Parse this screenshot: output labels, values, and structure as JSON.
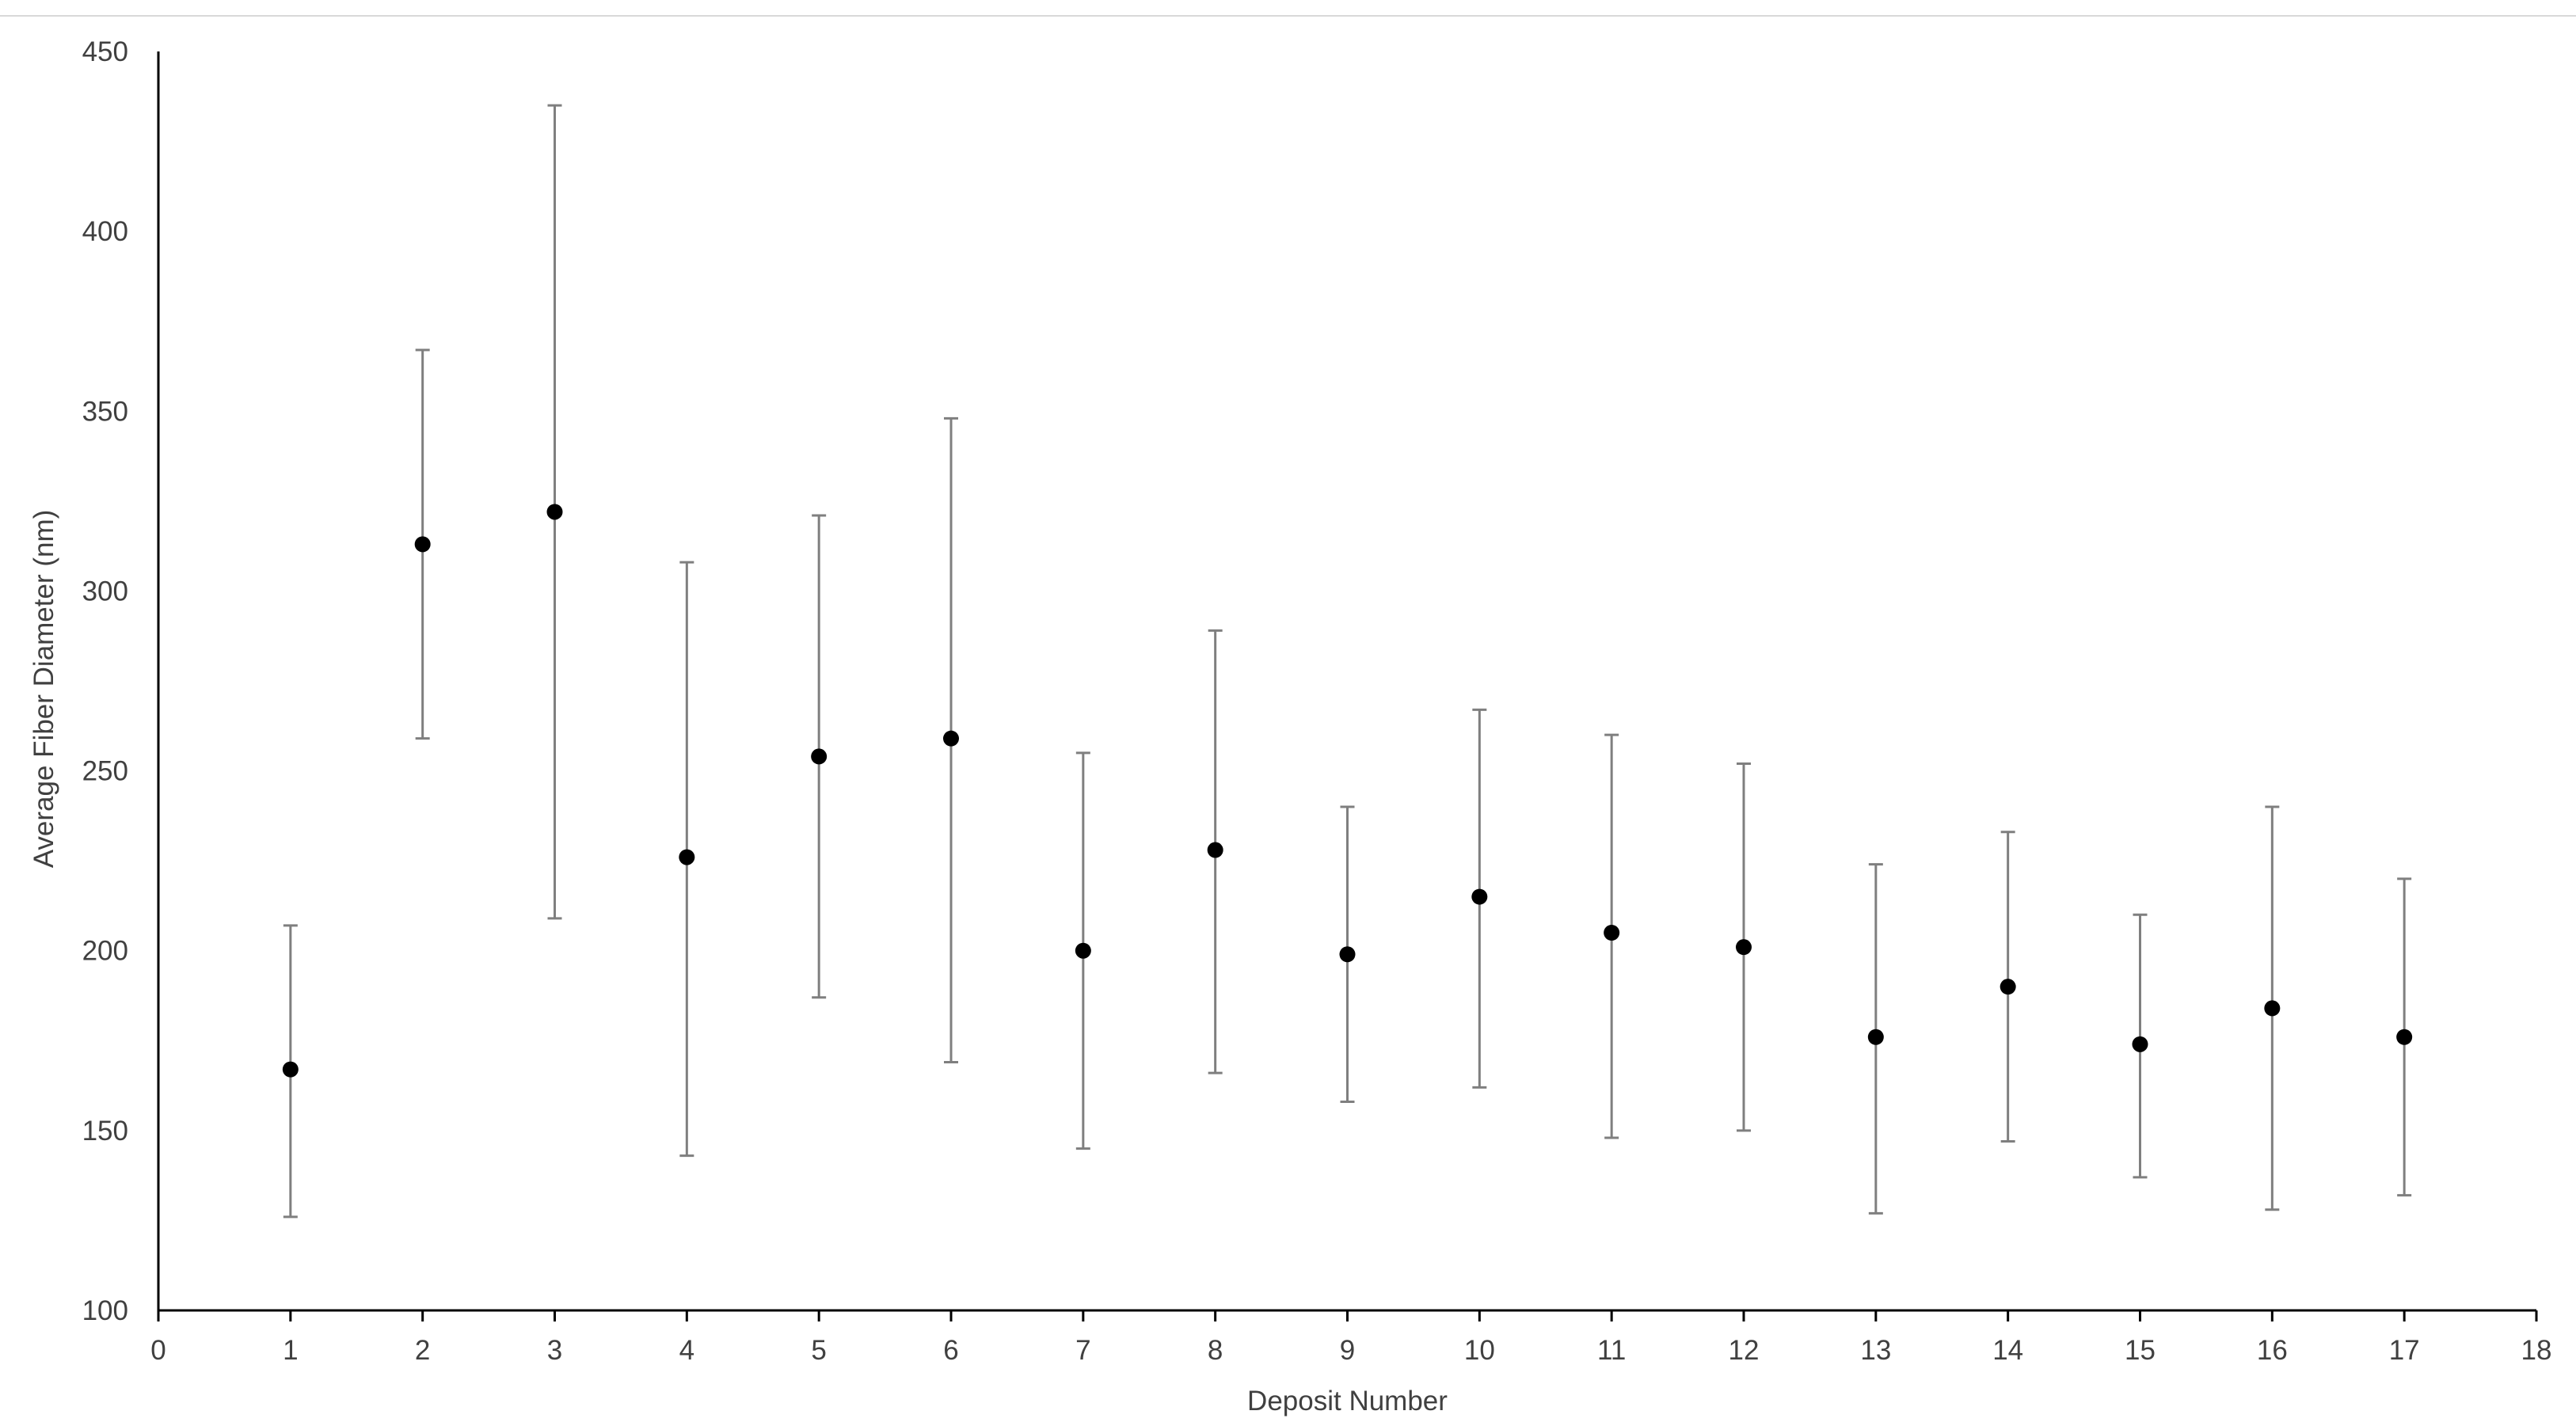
{
  "chart_data": {
    "type": "scatter",
    "title": "",
    "xlabel": "Deposit Number",
    "ylabel": "Average Fiber Diameter (nm)",
    "xlim": [
      0,
      18
    ],
    "ylim": [
      100,
      450
    ],
    "x_ticks": [
      "0",
      "1",
      "2",
      "3",
      "4",
      "5",
      "6",
      "7",
      "8",
      "9",
      "10",
      "11",
      "12",
      "13",
      "14",
      "15",
      "16",
      "17",
      "18"
    ],
    "y_ticks": [
      "100",
      "150",
      "200",
      "250",
      "300",
      "350",
      "400",
      "450"
    ],
    "grid": false,
    "legend": "none",
    "marker_color": "#000000",
    "error_bar_color": "#7f7f7f",
    "axis_color": "#000000",
    "text_color": "#404040",
    "points": [
      {
        "x": 1,
        "y": 167,
        "y_low": 126,
        "y_high": 207
      },
      {
        "x": 2,
        "y": 313,
        "y_low": 259,
        "y_high": 367
      },
      {
        "x": 3,
        "y": 322,
        "y_low": 209,
        "y_high": 435
      },
      {
        "x": 4,
        "y": 226,
        "y_low": 143,
        "y_high": 308
      },
      {
        "x": 5,
        "y": 254,
        "y_low": 187,
        "y_high": 321
      },
      {
        "x": 6,
        "y": 259,
        "y_low": 169,
        "y_high": 348
      },
      {
        "x": 7,
        "y": 200,
        "y_low": 145,
        "y_high": 255
      },
      {
        "x": 8,
        "y": 228,
        "y_low": 166,
        "y_high": 289
      },
      {
        "x": 9,
        "y": 199,
        "y_low": 158,
        "y_high": 240
      },
      {
        "x": 10,
        "y": 215,
        "y_low": 162,
        "y_high": 267
      },
      {
        "x": 11,
        "y": 205,
        "y_low": 148,
        "y_high": 260
      },
      {
        "x": 12,
        "y": 201,
        "y_low": 150,
        "y_high": 252
      },
      {
        "x": 13,
        "y": 176,
        "y_low": 127,
        "y_high": 224
      },
      {
        "x": 14,
        "y": 190,
        "y_low": 147,
        "y_high": 233
      },
      {
        "x": 15,
        "y": 174,
        "y_low": 137,
        "y_high": 210
      },
      {
        "x": 16,
        "y": 184,
        "y_low": 128,
        "y_high": 240
      },
      {
        "x": 17,
        "y": 176,
        "y_low": 132,
        "y_high": 220
      }
    ]
  }
}
